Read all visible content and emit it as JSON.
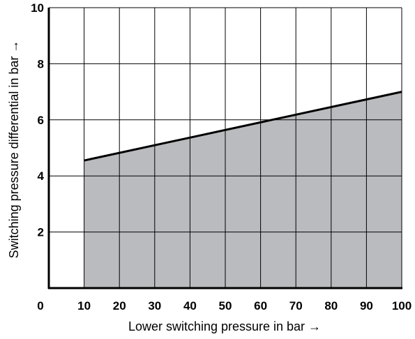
{
  "chart_data": {
    "type": "area",
    "title": "",
    "xlabel": "Lower switching pressure in bar →",
    "ylabel": "Switching pressure differential in bar →",
    "xlim": [
      0,
      100
    ],
    "ylim": [
      0,
      10
    ],
    "x_ticks": [
      "0",
      "10",
      "20",
      "30",
      "40",
      "50",
      "60",
      "70",
      "80",
      "90",
      "100"
    ],
    "y_ticks": [
      "2",
      "4",
      "6",
      "8",
      "10"
    ],
    "grid": true,
    "legend": "none",
    "series": [
      {
        "x": [
          10,
          100
        ],
        "y": [
          4.55,
          7.0
        ],
        "fill_color": "#babbbe",
        "line_color": "#000000"
      }
    ]
  }
}
